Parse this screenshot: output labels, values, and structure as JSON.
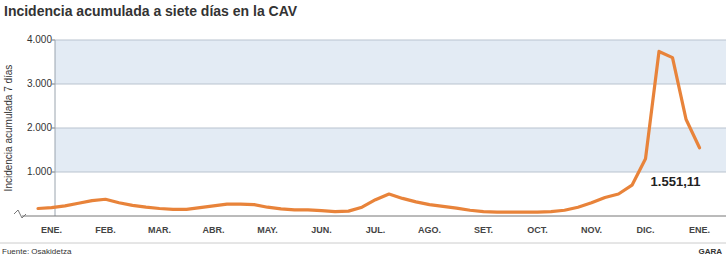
{
  "chart_data": {
    "type": "line",
    "title": "Incidencia acumulada a siete días en la CAV",
    "y_label": "Incidencia acumulada 7 días",
    "source": "Fuente: Osakidetza",
    "credit": "GARA",
    "categories": [
      null,
      "ENE.",
      null,
      null,
      null,
      "FEB.",
      null,
      null,
      null,
      "MAR.",
      null,
      null,
      null,
      "ABR.",
      null,
      null,
      null,
      "MAY.",
      null,
      null,
      null,
      "JUN.",
      null,
      null,
      null,
      "JUL.",
      null,
      null,
      null,
      "AGO.",
      null,
      null,
      null,
      "SET.",
      null,
      null,
      null,
      "OCT.",
      null,
      null,
      null,
      "NOV.",
      null,
      null,
      null,
      "DIC.",
      null,
      null,
      null,
      "ENE."
    ],
    "values": [
      170,
      190,
      230,
      290,
      350,
      380,
      300,
      240,
      200,
      170,
      150,
      150,
      190,
      230,
      270,
      270,
      260,
      200,
      160,
      140,
      140,
      120,
      100,
      110,
      200,
      370,
      500,
      400,
      320,
      260,
      220,
      180,
      130,
      100,
      90,
      90,
      90,
      90,
      100,
      130,
      200,
      300,
      420,
      500,
      700,
      1300,
      3740,
      3600,
      2200,
      1551.11
    ],
    "value_labels": [
      null,
      null,
      null,
      null,
      null,
      null,
      null,
      null,
      null,
      null,
      null,
      null,
      null,
      null,
      null,
      null,
      null,
      null,
      null,
      null,
      null,
      null,
      null,
      null,
      null,
      null,
      null,
      null,
      null,
      null,
      null,
      null,
      null,
      null,
      null,
      null,
      null,
      null,
      null,
      null,
      null,
      null,
      null,
      null,
      null,
      null,
      null,
      null,
      null,
      "1.551,11"
    ],
    "color": "#e8833a",
    "ylim": [
      0,
      4000
    ],
    "yticks": [
      {
        "value": 1000,
        "label": "1.000"
      },
      {
        "value": 2000,
        "label": "2.000"
      },
      {
        "value": 3000,
        "label": "3.000"
      },
      {
        "value": 4000,
        "label": "4.000"
      }
    ],
    "grid": true
  }
}
